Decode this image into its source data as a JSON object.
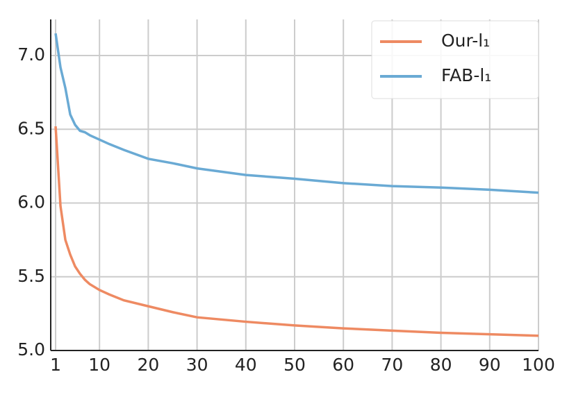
{
  "chart_data": {
    "type": "line",
    "x": [
      1,
      2,
      3,
      4,
      5,
      6,
      7,
      8,
      10,
      12,
      15,
      20,
      25,
      30,
      40,
      50,
      60,
      70,
      80,
      90,
      100
    ],
    "series": [
      {
        "name": "Our-l₁",
        "color": "#ee8a62",
        "values": [
          6.52,
          5.98,
          5.75,
          5.65,
          5.57,
          5.52,
          5.48,
          5.45,
          5.41,
          5.38,
          5.34,
          5.3,
          5.26,
          5.225,
          5.195,
          5.17,
          5.15,
          5.135,
          5.12,
          5.11,
          5.1
        ]
      },
      {
        "name": "FAB-l₁",
        "color": "#6aaad4",
        "values": [
          7.15,
          6.92,
          6.78,
          6.6,
          6.53,
          6.49,
          6.48,
          6.46,
          6.43,
          6.4,
          6.36,
          6.3,
          6.27,
          6.235,
          6.19,
          6.165,
          6.135,
          6.115,
          6.105,
          6.09,
          6.07
        ]
      }
    ],
    "xlim": [
      0,
      100
    ],
    "xticks": [
      1,
      10,
      20,
      30,
      40,
      50,
      60,
      70,
      80,
      90,
      100
    ],
    "ylim": [
      5.0,
      7.245
    ],
    "yticks": [
      {
        "value": 5.0,
        "label": "5.0"
      },
      5.5,
      {
        "value": 6.0,
        "label": "6.0"
      },
      6.5,
      {
        "value": 7.0,
        "label": "7.0"
      }
    ],
    "grid": true,
    "legend": "upper right"
  }
}
